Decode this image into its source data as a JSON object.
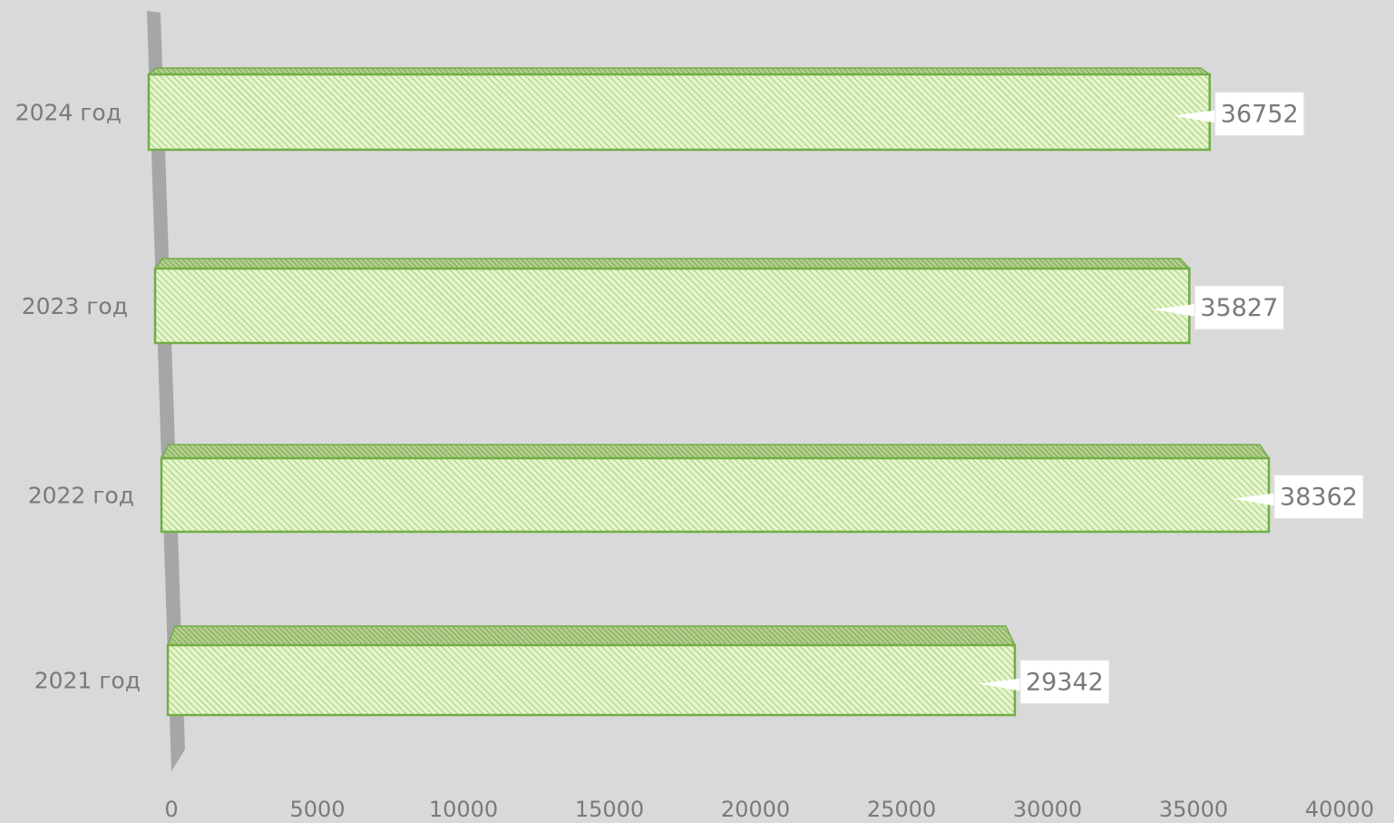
{
  "chart_data": {
    "type": "bar",
    "orientation": "horizontal",
    "style": "3d",
    "categories": [
      "2024 год",
      "2023 год",
      "2022 год",
      "2021 год"
    ],
    "values": [
      36752,
      35827,
      38362,
      29342
    ],
    "xlim": [
      0,
      40000
    ],
    "ticks": [
      0,
      5000,
      10000,
      15000,
      20000,
      25000,
      30000,
      35000,
      40000
    ],
    "grid": false,
    "legend": "none",
    "data_labels": true,
    "colors": {
      "bar_fill": "#e6f5cc",
      "bar_hatch": "#92c46a",
      "bar_border": "#70ad47",
      "axis_wall": "#a6a6a6",
      "label_box": "#ffffff",
      "text": "#7a7a7a"
    }
  }
}
